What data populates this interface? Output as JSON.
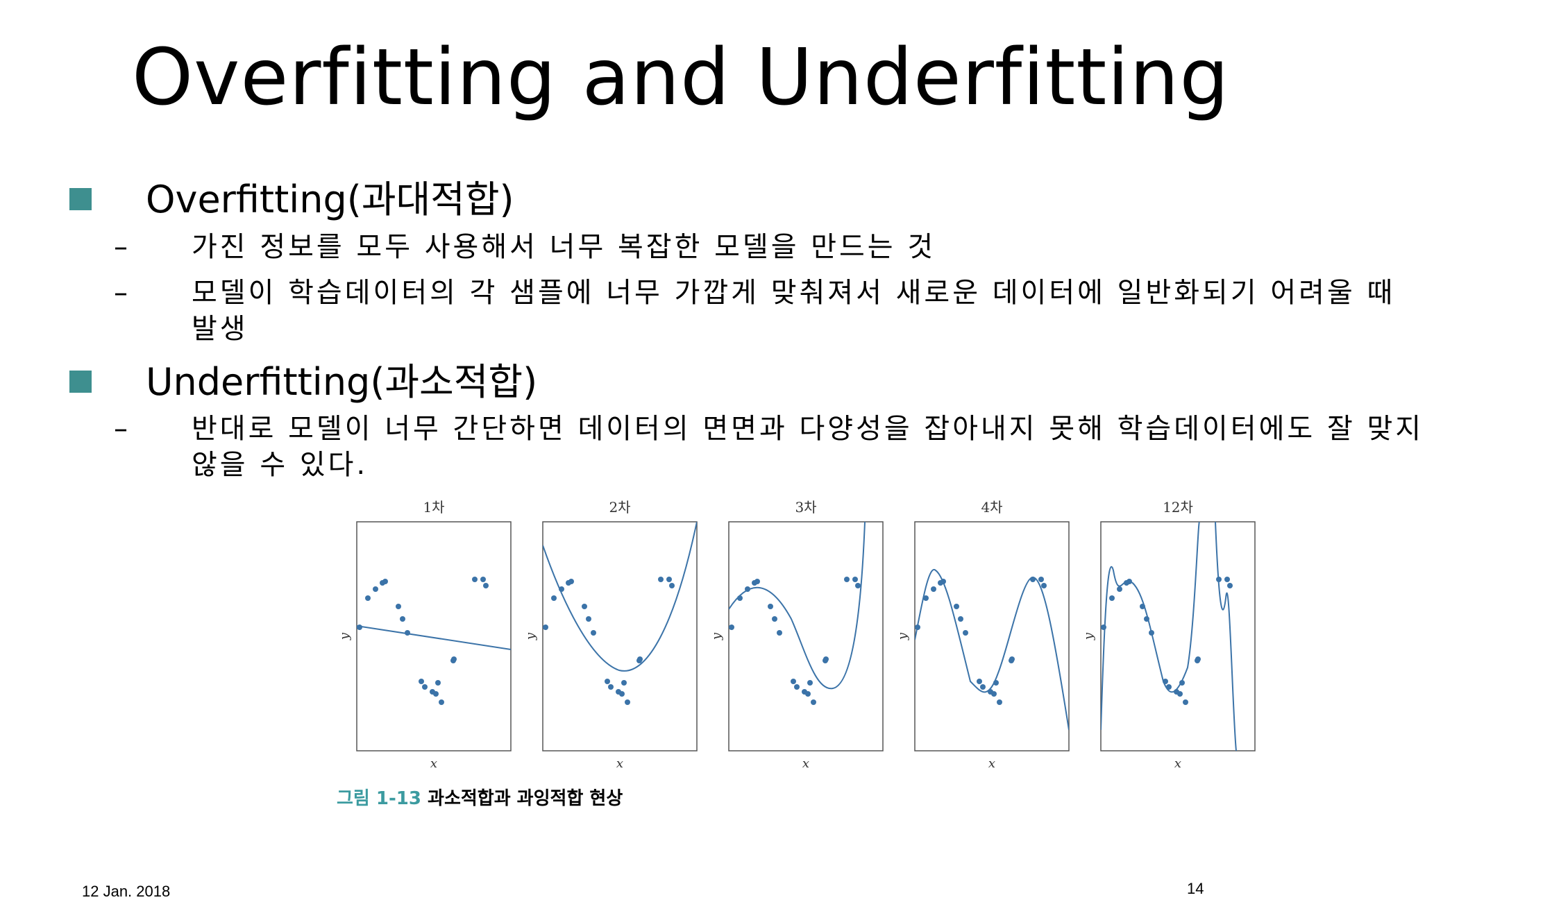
{
  "slide": {
    "title": "Overfitting and Underfitting",
    "footer_date": "12 Jan. 2018",
    "page_number": "14"
  },
  "colors": {
    "bullet": "#3e8f8f",
    "plot": "#3b73a8",
    "caption_num": "#3c9ba0"
  },
  "bullets": [
    {
      "heading": "Overfitting(과대적합)",
      "items": [
        {
          "lines": [
            "가진 정보를 모두 사용해서 너무 복잡한 모델을 만드는 것"
          ]
        },
        {
          "lines": [
            "모델이 학습데이터의 각 샘플에 너무 가깝게 맞춰져서 새로운 데이터에 일반화되기 어려울 때",
            "발생"
          ]
        }
      ]
    },
    {
      "heading": "Underfitting(과소적합)",
      "items": [
        {
          "lines": [
            "반대로 모델이 너무 간단하면 데이터의 면면과 다양성을 잡아내지 못해 학습데이터에도 잘 맞지",
            "않을 수 있다."
          ]
        }
      ]
    }
  ],
  "figure": {
    "caption_number": "그림 1-13",
    "caption_text": "과소적합과 과잉적합 현상",
    "panels": [
      {
        "title": "1차",
        "xlabel": "x",
        "ylabel": "y"
      },
      {
        "title": "2차",
        "xlabel": "x",
        "ylabel": "y"
      },
      {
        "title": "3차",
        "xlabel": "x",
        "ylabel": "y"
      },
      {
        "title": "4차",
        "xlabel": "x",
        "ylabel": "y"
      },
      {
        "title": "12차",
        "xlabel": "x",
        "ylabel": "y"
      }
    ]
  }
}
